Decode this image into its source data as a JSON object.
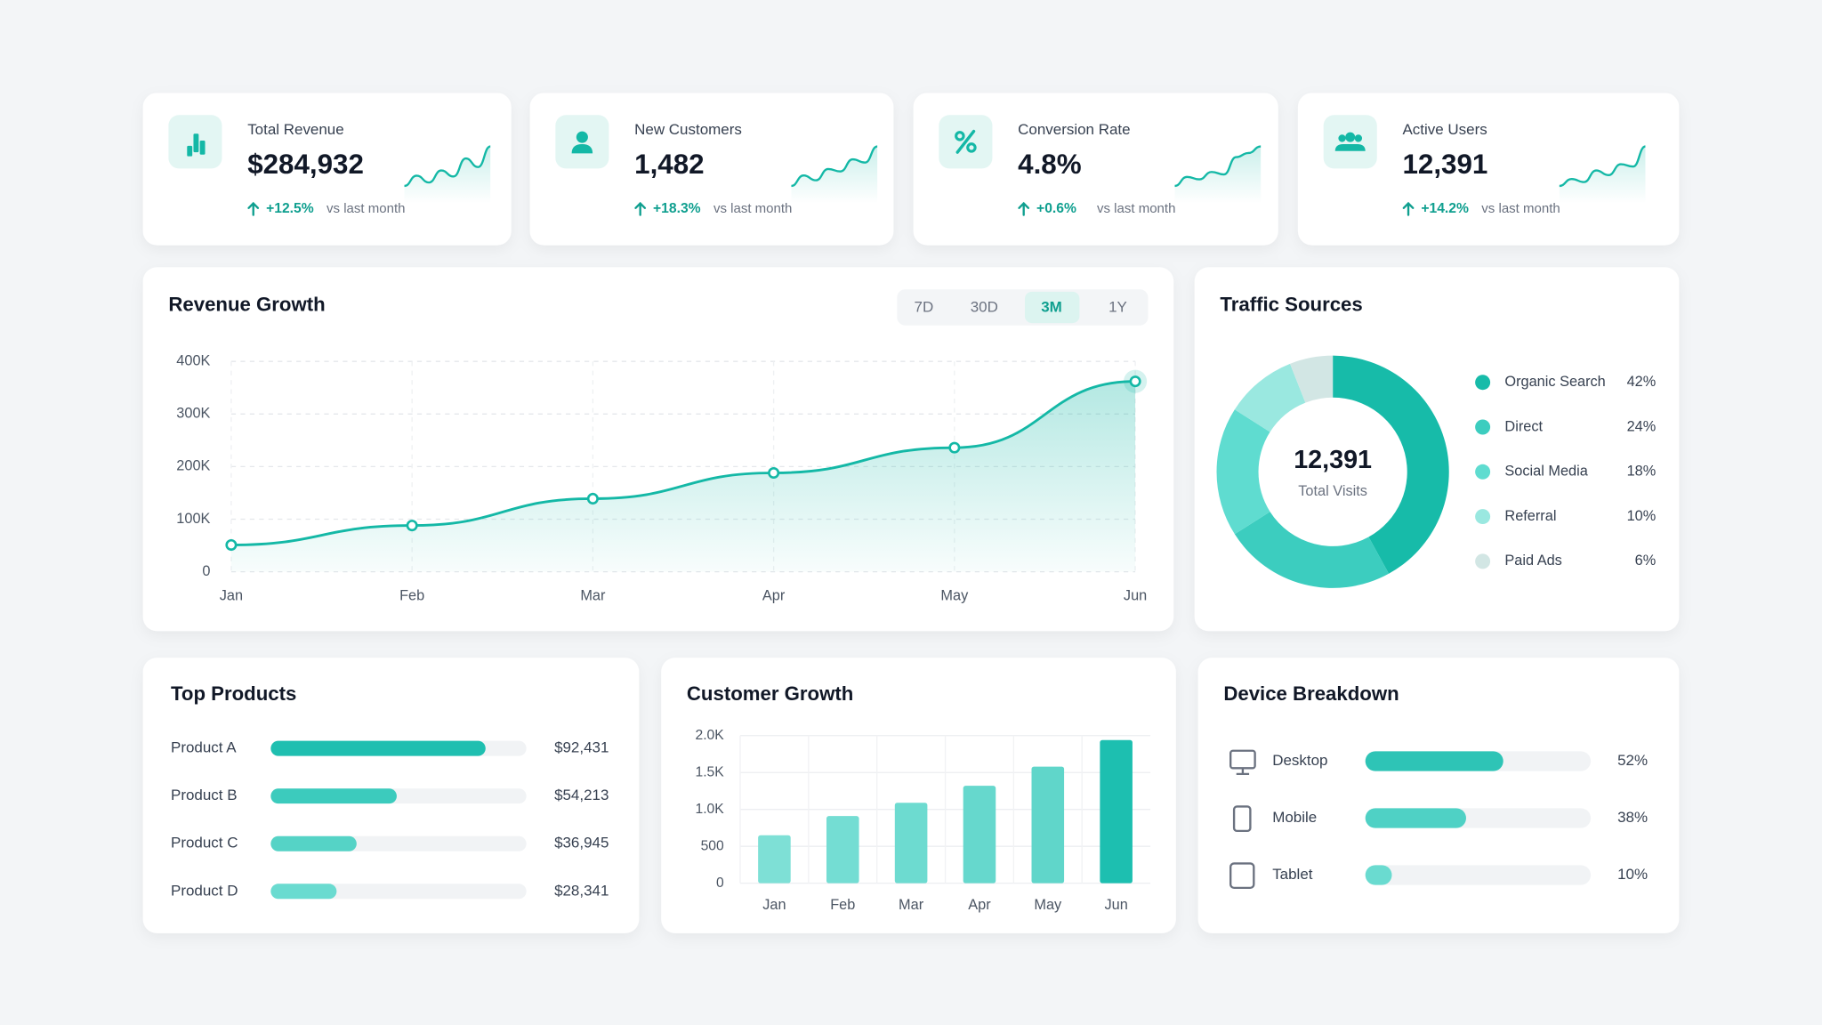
{
  "kpis": [
    {
      "label": "Total Revenue",
      "value": "$284,932",
      "change": "+12.5%",
      "note": "vs last month",
      "trend": [
        3,
        4.2,
        3.4,
        4.8,
        4.1,
        6.2,
        5.2,
        7.6
      ]
    },
    {
      "label": "New Customers",
      "value": "1,482",
      "change": "+18.3%",
      "note": "vs last month",
      "trend": [
        2.5,
        3.8,
        3.2,
        4.6,
        4.3,
        5.8,
        5.4,
        7.4
      ]
    },
    {
      "label": "Conversion Rate",
      "value": "4.8%",
      "change": "+0.6%",
      "note": "vs last month",
      "trend": [
        2.8,
        3.9,
        3.6,
        4.5,
        4.2,
        6.3,
        6.8,
        7.6
      ]
    },
    {
      "label": "Active Users",
      "value": "12,391",
      "change": "+14.2%",
      "note": "vs last month",
      "trend": [
        2.6,
        3.5,
        3.1,
        4.6,
        4.0,
        5.4,
        5.1,
        7.7
      ]
    }
  ],
  "chart_data": [
    {
      "type": "line",
      "title": "Revenue Growth",
      "ranges": [
        "7D",
        "30D",
        "3M",
        "1Y"
      ],
      "active_range": 2,
      "categories": [
        "Jan",
        "Feb",
        "Mar",
        "Apr",
        "May",
        "Jun"
      ],
      "values": [
        51000,
        88000,
        139000,
        188000,
        236000,
        362000
      ],
      "color": "#14b8a6",
      "ylim": [
        0,
        400000
      ],
      "yticks": [
        0,
        {
          "value": 100000,
          "label": "100K"
        },
        {
          "value": 200000,
          "label": "200K"
        },
        {
          "value": 300000,
          "label": "300K"
        },
        {
          "value": 400000,
          "label": "400K"
        }
      ],
      "grid": true
    },
    {
      "type": "donut",
      "title": "Traffic Sources",
      "center_value": "12,391",
      "center_label": "Total Visits",
      "categories": [
        "Organic Search",
        "Direct",
        "Social Media",
        "Referral",
        "Paid Ads"
      ],
      "values": [
        42,
        24,
        18,
        10,
        6
      ],
      "value_labels": [
        "42%",
        "24%",
        "18%",
        "10%",
        "6%"
      ],
      "colors": [
        "#17bba9",
        "#3ccdbf",
        "#5fdcd0",
        "#9ae8e0",
        "#d2e6e4"
      ]
    },
    {
      "type": "hbar",
      "title": "Top Products",
      "categories": [
        "Product A",
        "Product B",
        "Product C",
        "Product D"
      ],
      "values": [
        92431,
        54213,
        36945,
        28341
      ],
      "value_labels": [
        "$92,431",
        "$54,213",
        "$36,945",
        "$28,341"
      ],
      "xlim": [
        0,
        110000
      ],
      "colors": [
        "#1fbfb0",
        "#3ccbbd",
        "#55d3c6",
        "#6adbd0"
      ]
    },
    {
      "type": "bar",
      "title": "Customer Growth",
      "categories": [
        "Jan",
        "Feb",
        "Mar",
        "Apr",
        "May",
        "Jun"
      ],
      "values": [
        650,
        910,
        1090,
        1320,
        1580,
        1940
      ],
      "colors": [
        "#7ee0d6",
        "#74ddd3",
        "#6ddbd0",
        "#66d8cd",
        "#60d6ca",
        "#1dbfb0"
      ],
      "ylim": [
        0,
        2000
      ],
      "yticks": [
        0,
        500,
        {
          "value": 1000,
          "label": "1.0K"
        },
        {
          "value": 1500,
          "label": "1.5K"
        },
        {
          "value": 2000,
          "label": "2.0K"
        }
      ],
      "grid": true
    },
    {
      "type": "hbar",
      "title": "Device Breakdown",
      "categories": [
        "Desktop",
        "Mobile",
        "Tablet"
      ],
      "values": [
        52,
        38,
        10
      ],
      "value_labels": [
        "52%",
        "38%",
        "10%"
      ],
      "xlim": [
        0,
        85
      ],
      "colors": [
        "#2ec4b6",
        "#4fd1c5",
        "#6adbd0"
      ]
    }
  ]
}
